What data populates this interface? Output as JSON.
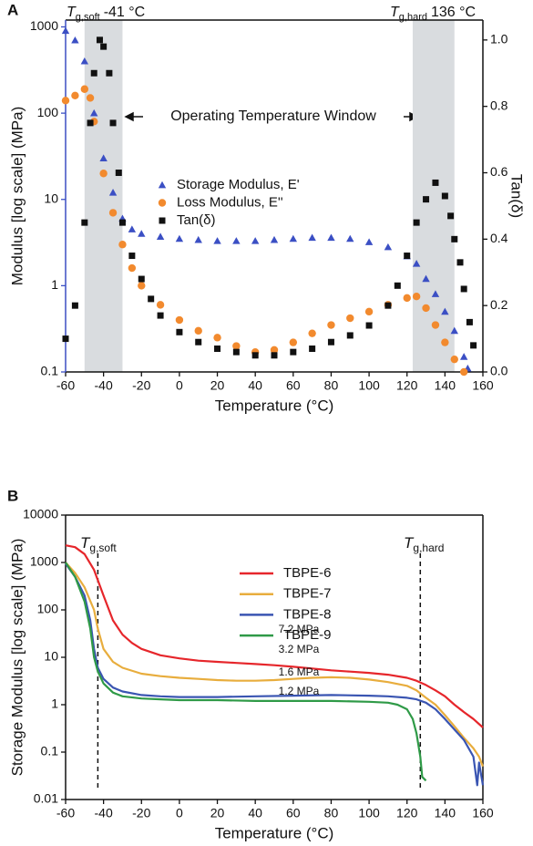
{
  "chart_data": [
    {
      "type": "scatter",
      "panel_label": "A",
      "x_label": "Temperature (°C)",
      "y_label": "Modulus [log scale] (MPa)",
      "y2_label": "Tan(δ)",
      "xlim": [
        -60,
        160
      ],
      "xticks": [
        -60,
        -40,
        -20,
        0,
        20,
        40,
        60,
        80,
        100,
        120,
        140,
        160
      ],
      "ylim": [
        0.1,
        1200
      ],
      "ylog": true,
      "yticks": [
        0.1,
        1,
        10,
        100,
        1000
      ],
      "y_axis_color": "#3b4fc4",
      "y2lim": [
        0,
        1.06
      ],
      "y2ticks": [
        {
          "value": 0,
          "label": "0.0"
        },
        0.2,
        0.4,
        0.6,
        0.8,
        {
          "value": 1,
          "label": "1.0"
        }
      ],
      "shaded_regions": [
        [
          -50,
          -30
        ],
        [
          123,
          145
        ]
      ],
      "annotations": [
        {
          "symbol": "T",
          "subscript": "g,soft",
          "text": "-41 °C"
        },
        {
          "symbol": "T",
          "subscript": "g,hard",
          "text": "136 °C"
        },
        {
          "text": "Operating Temperature Window"
        }
      ],
      "series": [
        {
          "name": "Storage Modulus, E'",
          "color": "#3b4fc4",
          "marker": "triangle",
          "x": [
            -60,
            -55,
            -50,
            -45,
            -40,
            -35,
            -30,
            -25,
            -20,
            -10,
            0,
            10,
            20,
            30,
            40,
            50,
            60,
            70,
            80,
            90,
            100,
            110,
            120,
            125,
            130,
            135,
            140,
            145,
            150,
            152
          ],
          "values": [
            900,
            700,
            400,
            100,
            30,
            12,
            6,
            4.5,
            4,
            3.7,
            3.5,
            3.4,
            3.3,
            3.3,
            3.3,
            3.4,
            3.5,
            3.6,
            3.6,
            3.5,
            3.2,
            2.8,
            2.2,
            1.8,
            1.2,
            0.8,
            0.5,
            0.3,
            0.15,
            0.11
          ]
        },
        {
          "name": "Loss Modulus, E''",
          "color": "#f28a2e",
          "marker": "circle",
          "x": [
            -60,
            -55,
            -50,
            -47,
            -45,
            -40,
            -35,
            -30,
            -25,
            -20,
            -10,
            0,
            10,
            20,
            30,
            40,
            50,
            60,
            70,
            80,
            90,
            100,
            110,
            120,
            125,
            130,
            135,
            140,
            145,
            150
          ],
          "values": [
            140,
            160,
            190,
            150,
            80,
            20,
            7,
            3,
            1.6,
            1,
            0.6,
            0.4,
            0.3,
            0.25,
            0.2,
            0.17,
            0.18,
            0.22,
            0.28,
            0.35,
            0.42,
            0.5,
            0.6,
            0.72,
            0.75,
            0.55,
            0.35,
            0.22,
            0.14,
            0.1
          ]
        },
        {
          "name": "Tan(δ)",
          "color": "#111111",
          "marker": "square",
          "axis": "y2",
          "x": [
            -60,
            -55,
            -50,
            -47,
            -45,
            -42,
            -40,
            -37,
            -35,
            -32,
            -30,
            -25,
            -20,
            -15,
            -10,
            0,
            10,
            20,
            30,
            40,
            50,
            60,
            70,
            80,
            90,
            100,
            110,
            115,
            120,
            125,
            130,
            135,
            140,
            143,
            145,
            148,
            150,
            153,
            155
          ],
          "values": [
            0.1,
            0.2,
            0.45,
            0.75,
            0.9,
            1.0,
            0.98,
            0.9,
            0.75,
            0.6,
            0.45,
            0.35,
            0.28,
            0.22,
            0.17,
            0.12,
            0.09,
            0.07,
            0.06,
            0.05,
            0.05,
            0.06,
            0.07,
            0.09,
            0.11,
            0.14,
            0.2,
            0.26,
            0.35,
            0.45,
            0.52,
            0.57,
            0.53,
            0.47,
            0.4,
            0.33,
            0.25,
            0.15,
            0.08
          ]
        }
      ]
    },
    {
      "type": "line",
      "panel_label": "B",
      "x_label": "Temperature (°C)",
      "y_label": "Storage Modulus [log scale] (MPa)",
      "xlim": [
        -60,
        160
      ],
      "xticks": [
        -60,
        -40,
        -20,
        0,
        20,
        40,
        60,
        80,
        100,
        120,
        140,
        160
      ],
      "ylim": [
        0.01,
        10000
      ],
      "ylog": true,
      "yticks": [
        0.01,
        0.1,
        1,
        10,
        100,
        1000,
        10000
      ],
      "vlines": [
        -43,
        127
      ],
      "annotations": [
        {
          "symbol": "T",
          "subscript": "g,soft"
        },
        {
          "symbol": "T",
          "subscript": "g,hard"
        }
      ],
      "series": [
        {
          "name": "TBPE-6",
          "color": "#e6262b",
          "annotation": "7.2 MPa",
          "x": [
            -60,
            -55,
            -50,
            -45,
            -40,
            -35,
            -30,
            -25,
            -20,
            -10,
            0,
            10,
            20,
            30,
            40,
            50,
            60,
            70,
            80,
            90,
            100,
            110,
            120,
            125,
            130,
            135,
            140,
            145,
            150,
            155,
            160
          ],
          "values": [
            2300,
            2100,
            1500,
            700,
            200,
            60,
            30,
            20,
            15,
            11,
            9.5,
            8.5,
            8,
            7.6,
            7.2,
            6.8,
            6.3,
            5.8,
            5.3,
            5,
            4.7,
            4.3,
            3.7,
            3.2,
            2.6,
            2,
            1.5,
            1,
            0.7,
            0.5,
            0.33
          ]
        },
        {
          "name": "TBPE-7",
          "color": "#e8ad3d",
          "annotation": "3.2 MPa",
          "x": [
            -60,
            -55,
            -50,
            -45,
            -43,
            -40,
            -35,
            -30,
            -20,
            -10,
            0,
            10,
            20,
            30,
            40,
            50,
            60,
            70,
            80,
            90,
            100,
            110,
            120,
            125,
            130,
            135,
            140,
            145,
            150,
            155,
            158,
            160
          ],
          "values": [
            1000,
            600,
            300,
            100,
            40,
            15,
            8,
            6,
            4.5,
            4,
            3.7,
            3.5,
            3.3,
            3.2,
            3.2,
            3.3,
            3.5,
            3.7,
            3.8,
            3.7,
            3.4,
            3,
            2.5,
            2,
            1.4,
            1,
            0.6,
            0.35,
            0.2,
            0.12,
            0.08,
            0.05
          ]
        },
        {
          "name": "TBPE-8",
          "color": "#3a55b2",
          "annotation": "1.6 MPa",
          "x": [
            -60,
            -55,
            -50,
            -47,
            -45,
            -43,
            -40,
            -35,
            -30,
            -20,
            -10,
            0,
            20,
            40,
            60,
            80,
            100,
            110,
            120,
            125,
            130,
            135,
            140,
            145,
            150,
            155,
            157,
            158,
            160
          ],
          "values": [
            950,
            500,
            200,
            60,
            15,
            6,
            3.5,
            2.3,
            1.9,
            1.6,
            1.5,
            1.45,
            1.45,
            1.5,
            1.55,
            1.6,
            1.55,
            1.5,
            1.4,
            1.3,
            1.1,
            0.8,
            0.5,
            0.3,
            0.18,
            0.08,
            0.02,
            0.06,
            0.02
          ]
        },
        {
          "name": "TBPE-9",
          "color": "#2f9a47",
          "annotation": "1.2 MPa",
          "x": [
            -60,
            -55,
            -50,
            -47,
            -45,
            -43,
            -40,
            -35,
            -30,
            -20,
            -10,
            0,
            20,
            40,
            60,
            80,
            100,
            110,
            115,
            120,
            123,
            125,
            127,
            128,
            130
          ],
          "values": [
            1000,
            500,
            150,
            40,
            10,
            5,
            2.8,
            1.8,
            1.5,
            1.35,
            1.3,
            1.25,
            1.25,
            1.2,
            1.2,
            1.2,
            1.15,
            1.1,
            1,
            0.8,
            0.5,
            0.25,
            0.08,
            0.03,
            0.025
          ]
        }
      ]
    }
  ]
}
